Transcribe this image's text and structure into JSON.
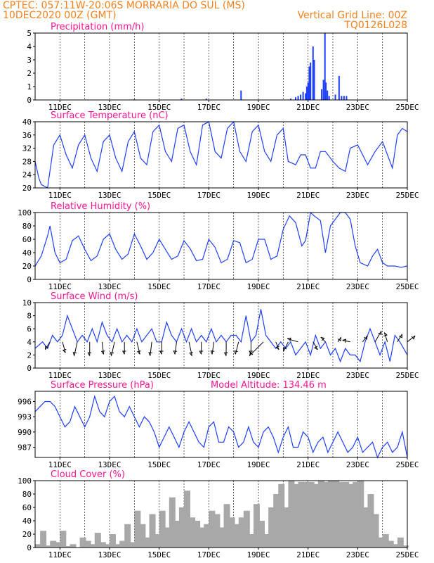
{
  "header": {
    "line1_left": "CPTEC:  057:11W-20:06S  MORRARIA DO SUL (MS)",
    "line2_left": "10DEC2020 00Z (GMT)",
    "line2_right": "Vertical Grid Line: 00Z",
    "line3_right": "TQ0126L028"
  },
  "colors": {
    "header": "#f58220",
    "title": "#ff1493",
    "line": "#1f3fff",
    "cloud": "#a8a8a8",
    "arrow": "#000000"
  },
  "x_axis": {
    "ticks": [
      "11DEC",
      "13DEC",
      "15DEC",
      "17DEC",
      "19DEC",
      "21DEC",
      "23DEC",
      "25DEC"
    ],
    "tick_days": [
      11,
      13,
      15,
      17,
      19,
      21,
      23,
      25
    ],
    "range_days": [
      10,
      25
    ]
  },
  "chart_data": [
    {
      "id": "precip",
      "type": "bar",
      "title": "Precipitation (mm/h)",
      "ylim": [
        0,
        5
      ],
      "yticks": [
        "0",
        "1",
        "2",
        "3",
        "4",
        "5"
      ],
      "x_days": [
        14.0,
        15.9,
        16.9,
        18.3,
        20.3,
        20.5,
        20.6,
        20.7,
        20.8,
        20.9,
        20.95,
        21.0,
        21.05,
        21.1,
        21.2,
        21.25,
        21.55,
        21.62,
        21.68,
        21.72,
        21.78,
        21.85,
        22.1,
        22.25,
        22.35,
        22.45,
        22.55
      ],
      "values": [
        0.05,
        0.1,
        0.1,
        0.7,
        0.1,
        0.2,
        0.3,
        0.4,
        0.6,
        0.5,
        1.0,
        1.3,
        2.5,
        2.8,
        4.0,
        3.0,
        0.8,
        1.5,
        5.0,
        1.3,
        0.7,
        0.3,
        0.4,
        1.8,
        0.3,
        0.3,
        0.3
      ]
    },
    {
      "id": "temp",
      "type": "line",
      "title": "Surface Temperature (nC)",
      "ylim": [
        20,
        40
      ],
      "yticks": [
        "20",
        "24",
        "28",
        "32",
        "36",
        "40"
      ],
      "x_days": [
        10.0,
        10.15,
        10.25,
        10.5,
        10.75,
        11.0,
        11.25,
        11.5,
        11.75,
        12.0,
        12.25,
        12.5,
        12.75,
        13.0,
        13.25,
        13.5,
        13.75,
        14.0,
        14.25,
        14.5,
        14.75,
        15.0,
        15.25,
        15.5,
        15.75,
        16.0,
        16.25,
        16.5,
        16.75,
        17.0,
        17.25,
        17.5,
        17.75,
        18.0,
        18.25,
        18.5,
        18.75,
        19.0,
        19.25,
        19.5,
        19.75,
        20.0,
        20.2,
        20.5,
        20.7,
        20.9,
        21.1,
        21.3,
        21.5,
        21.7,
        21.9,
        22.0,
        22.25,
        22.5,
        22.7,
        23.0,
        23.2,
        23.4,
        23.7,
        24.0,
        24.2,
        24.4,
        24.6,
        24.8,
        25.0
      ],
      "values": [
        28,
        23,
        21,
        20,
        33,
        36,
        30,
        26,
        33,
        36,
        29,
        25,
        34,
        36,
        29,
        25,
        34,
        37,
        29,
        27,
        37,
        39,
        31,
        28,
        38,
        39,
        31,
        27,
        39,
        40,
        31,
        29,
        38,
        40,
        31,
        28,
        37,
        39,
        31,
        28,
        36,
        38,
        28,
        27,
        30,
        30,
        26,
        26,
        31,
        31,
        29,
        28,
        26,
        25,
        32,
        33,
        30,
        27,
        31,
        34,
        30,
        26,
        36,
        38,
        37
      ]
    },
    {
      "id": "rh",
      "type": "line",
      "title": "Relative Humidity (%)",
      "ylim": [
        0,
        100
      ],
      "yticks": [
        "0",
        "20",
        "40",
        "60",
        "80",
        "100"
      ],
      "x_days": [
        10.0,
        10.25,
        10.5,
        10.6,
        10.8,
        11.0,
        11.25,
        11.5,
        11.75,
        12.0,
        12.25,
        12.5,
        12.75,
        13.0,
        13.25,
        13.5,
        13.75,
        14.0,
        14.25,
        14.5,
        14.75,
        15.0,
        15.25,
        15.5,
        15.75,
        16.0,
        16.25,
        16.5,
        16.75,
        17.0,
        17.25,
        17.5,
        17.75,
        18.0,
        18.25,
        18.5,
        18.75,
        19.0,
        19.25,
        19.5,
        19.75,
        20.0,
        20.25,
        20.5,
        20.75,
        20.9,
        21.1,
        21.25,
        21.5,
        21.7,
        21.9,
        22.1,
        22.3,
        22.5,
        22.7,
        22.9,
        23.1,
        23.4,
        23.6,
        23.8,
        24.0,
        24.2,
        24.5,
        24.75,
        25.0
      ],
      "values": [
        20,
        35,
        65,
        80,
        40,
        25,
        30,
        58,
        65,
        45,
        28,
        35,
        60,
        68,
        45,
        30,
        38,
        68,
        50,
        30,
        40,
        60,
        45,
        30,
        35,
        58,
        46,
        28,
        30,
        60,
        48,
        25,
        30,
        58,
        55,
        25,
        30,
        60,
        60,
        30,
        35,
        75,
        95,
        85,
        50,
        58,
        100,
        95,
        88,
        40,
        80,
        90,
        100,
        100,
        90,
        50,
        25,
        20,
        35,
        45,
        25,
        20,
        20,
        18,
        20
      ]
    },
    {
      "id": "wind",
      "type": "line",
      "title": "Surface Wind (m/s)",
      "ylim": [
        0,
        10
      ],
      "yticks": [
        "0",
        "2",
        "4",
        "6",
        "8",
        "10"
      ],
      "x_days": [
        10.0,
        10.3,
        10.5,
        10.7,
        10.9,
        11.1,
        11.3,
        11.5,
        11.7,
        11.9,
        12.1,
        12.3,
        12.5,
        12.7,
        12.9,
        13.1,
        13.3,
        13.5,
        13.7,
        13.9,
        14.1,
        14.3,
        14.5,
        14.7,
        14.9,
        15.1,
        15.3,
        15.5,
        15.7,
        15.9,
        16.1,
        16.3,
        16.5,
        16.7,
        16.9,
        17.1,
        17.3,
        17.5,
        17.7,
        17.9,
        18.1,
        18.3,
        18.5,
        18.7,
        18.9,
        19.1,
        19.3,
        19.5,
        19.7,
        19.9,
        20.1,
        20.3,
        20.5,
        20.7,
        20.9,
        21.1,
        21.3,
        21.5,
        21.7,
        21.9,
        22.1,
        22.3,
        22.5,
        22.7,
        22.9,
        23.1,
        23.3,
        23.5,
        23.7,
        23.9,
        24.1,
        24.3,
        24.5,
        24.7,
        25.0
      ],
      "values": [
        3,
        4,
        3,
        5,
        4,
        5,
        8,
        6,
        4,
        5,
        4,
        6,
        4,
        7,
        5,
        4,
        6,
        4,
        5,
        4,
        6,
        4,
        5,
        6,
        4,
        4,
        7,
        5,
        4,
        6,
        4,
        6,
        4,
        5,
        4,
        6,
        4,
        5,
        4,
        5,
        5,
        4,
        8,
        4,
        5,
        9,
        5,
        4,
        3,
        4,
        3,
        4,
        2,
        3,
        4,
        2,
        5,
        3,
        4,
        2,
        3,
        1,
        3,
        2,
        2,
        1,
        4,
        6,
        4,
        2,
        4,
        1,
        5,
        4,
        2
      ]
    },
    {
      "id": "pressure",
      "type": "line",
      "title": "Surface Pressure (hPa)",
      "annotation": "Model Altitude: 134.46 m",
      "ylim": [
        985,
        998
      ],
      "yticks": [
        "987",
        "990",
        "993",
        "996"
      ],
      "x_days": [
        10.0,
        10.2,
        10.4,
        10.6,
        10.8,
        11.0,
        11.2,
        11.4,
        11.6,
        11.8,
        12.0,
        12.2,
        12.4,
        12.6,
        12.8,
        13.0,
        13.2,
        13.4,
        13.6,
        13.8,
        14.0,
        14.2,
        14.4,
        14.6,
        14.8,
        15.0,
        15.2,
        15.4,
        15.6,
        15.8,
        16.0,
        16.2,
        16.4,
        16.6,
        16.8,
        17.0,
        17.2,
        17.4,
        17.6,
        17.8,
        18.0,
        18.2,
        18.4,
        18.6,
        18.8,
        19.0,
        19.2,
        19.4,
        19.6,
        19.8,
        20.0,
        20.2,
        20.4,
        20.6,
        20.8,
        21.0,
        21.2,
        21.4,
        21.6,
        21.8,
        22.0,
        22.2,
        22.4,
        22.6,
        22.8,
        23.0,
        23.2,
        23.4,
        23.6,
        23.8,
        24.0,
        24.2,
        24.4,
        24.6,
        24.8,
        25.0
      ],
      "values": [
        994,
        995,
        996,
        996,
        995,
        993,
        991,
        992,
        995,
        993,
        991,
        993,
        997,
        994,
        993,
        996,
        997,
        994,
        993,
        995,
        993,
        991,
        993,
        992,
        990,
        987,
        989,
        991,
        989,
        987,
        990,
        992,
        990,
        988,
        987,
        991,
        992,
        988,
        988,
        991,
        990,
        987,
        988,
        991,
        988,
        987,
        990,
        991,
        989,
        986,
        989,
        991,
        987,
        987,
        990,
        989,
        986,
        988,
        989,
        986,
        988,
        990,
        988,
        986,
        987,
        989,
        986,
        987,
        988,
        985,
        987,
        988,
        986,
        987,
        990,
        985
      ]
    },
    {
      "id": "cloud",
      "type": "bar",
      "title": "Cloud Cover (%)",
      "ylim": [
        0,
        100
      ],
      "yticks": [
        "0",
        "20",
        "40",
        "60",
        "80",
        "100"
      ],
      "x_days": [
        10.0,
        10.2,
        10.4,
        10.6,
        10.8,
        11.0,
        11.2,
        11.4,
        11.6,
        11.8,
        12.0,
        12.2,
        12.4,
        12.6,
        12.8,
        13.0,
        13.2,
        13.4,
        13.6,
        13.8,
        14.0,
        14.2,
        14.4,
        14.6,
        14.8,
        15.0,
        15.2,
        15.4,
        15.6,
        15.8,
        16.0,
        16.2,
        16.4,
        16.6,
        16.8,
        17.0,
        17.2,
        17.4,
        17.6,
        17.8,
        18.0,
        18.2,
        18.4,
        18.6,
        18.8,
        19.0,
        19.2,
        19.4,
        19.6,
        19.8,
        20.0,
        20.2,
        20.4,
        20.6,
        20.8,
        21.0,
        21.2,
        21.4,
        21.6,
        21.8,
        22.0,
        22.2,
        22.4,
        22.6,
        22.8,
        23.0,
        23.2,
        23.4,
        23.6,
        23.8,
        24.0,
        24.2,
        24.4,
        24.6,
        24.8
      ],
      "values": [
        5,
        25,
        3,
        10,
        8,
        25,
        2,
        5,
        0,
        15,
        10,
        5,
        22,
        8,
        5,
        20,
        5,
        10,
        35,
        8,
        55,
        35,
        15,
        50,
        20,
        55,
        30,
        75,
        40,
        60,
        85,
        45,
        40,
        30,
        35,
        55,
        50,
        30,
        65,
        45,
        35,
        45,
        55,
        20,
        65,
        40,
        20,
        60,
        80,
        95,
        60,
        100,
        95,
        98,
        98,
        98,
        95,
        100,
        98,
        100,
        100,
        98,
        98,
        95,
        98,
        100,
        60,
        80,
        50,
        15,
        20,
        10,
        5,
        15,
        3
      ]
    }
  ],
  "wind_vectors": {
    "x_days": [
      10.6,
      11.1,
      11.7,
      12.2,
      12.7,
      13.2,
      13.6,
      14.1,
      14.7,
      15.1,
      15.7,
      16.2,
      16.7,
      17.2,
      17.7,
      18.2,
      18.7,
      19.2,
      19.7,
      20.2,
      20.6,
      21.2,
      21.7,
      22.2,
      22.7,
      23.2,
      23.7,
      24.2,
      24.6,
      25.0
    ],
    "dx": [
      -0.3,
      0.2,
      -0.2,
      0,
      0.1,
      -0.2,
      0,
      0.2,
      -0.1,
      0,
      -0.1,
      0.2,
      0,
      -0.1,
      0,
      -0.2,
      0,
      -0.9,
      0.2,
      -0.3,
      -0.7,
      0.3,
      -0.3,
      0.2,
      -0.5,
      0.3,
      0.4,
      -0.2,
      0.3,
      0.5
    ],
    "dy": [
      -0.5,
      -0.7,
      -0.9,
      -0.9,
      -0.8,
      -0.9,
      -0.8,
      -0.8,
      -0.9,
      -0.8,
      -0.8,
      -0.9,
      -0.8,
      -0.8,
      -0.9,
      -0.8,
      -0.8,
      -0.9,
      -0.5,
      -0.6,
      0.2,
      -0.5,
      0.3,
      0.3,
      0.1,
      0.4,
      0.7,
      0.6,
      0.5,
      0.4
    ]
  }
}
